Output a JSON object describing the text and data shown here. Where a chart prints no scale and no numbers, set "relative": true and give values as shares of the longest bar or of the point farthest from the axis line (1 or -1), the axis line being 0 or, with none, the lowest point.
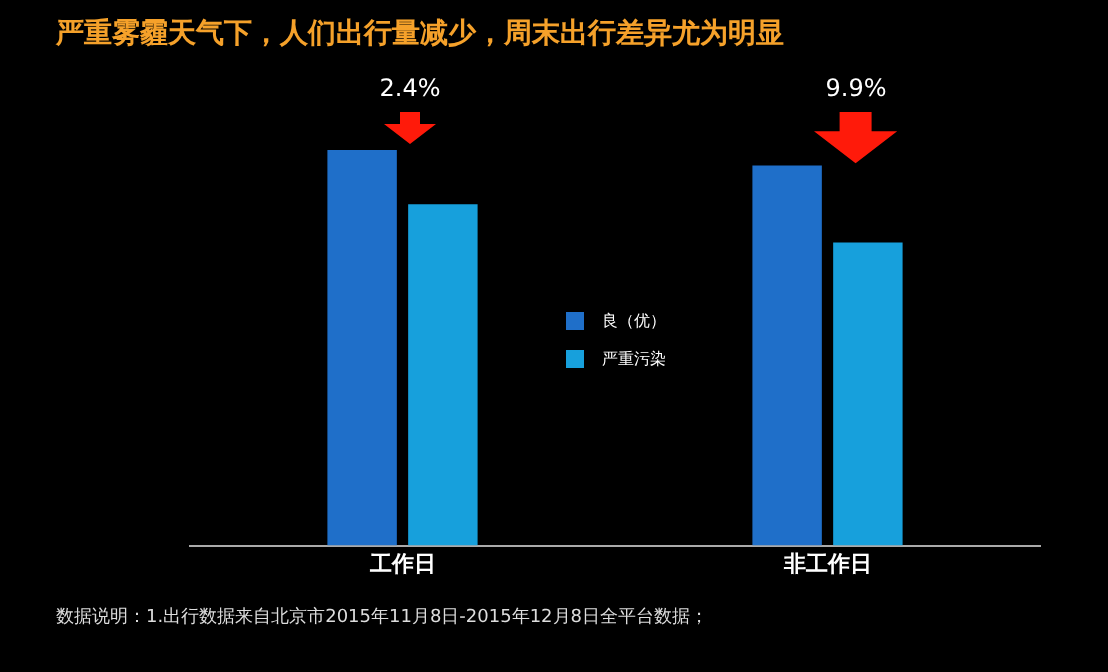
{
  "chart_data": {
    "type": "bar",
    "title": "严重雾霾天气下，人们出行量减少，周末出行差异尤为明显",
    "categories": [
      "工作日",
      "非工作日"
    ],
    "relative": true,
    "legend": "center",
    "grid": false,
    "series": [
      {
        "name": "良（优）",
        "color": "#1f6fc9",
        "values": [
          1,
          0.961
        ]
      },
      {
        "name": "严重污染",
        "color": "#17a0dc",
        "values": [
          0.863,
          0.766
        ]
      }
    ],
    "annotations": [
      "2.4%",
      "9.9%",
      "数据说明：1.出行数据来自北京市2015年11月8日-2015年12月8日全平台数据；"
    ]
  }
}
